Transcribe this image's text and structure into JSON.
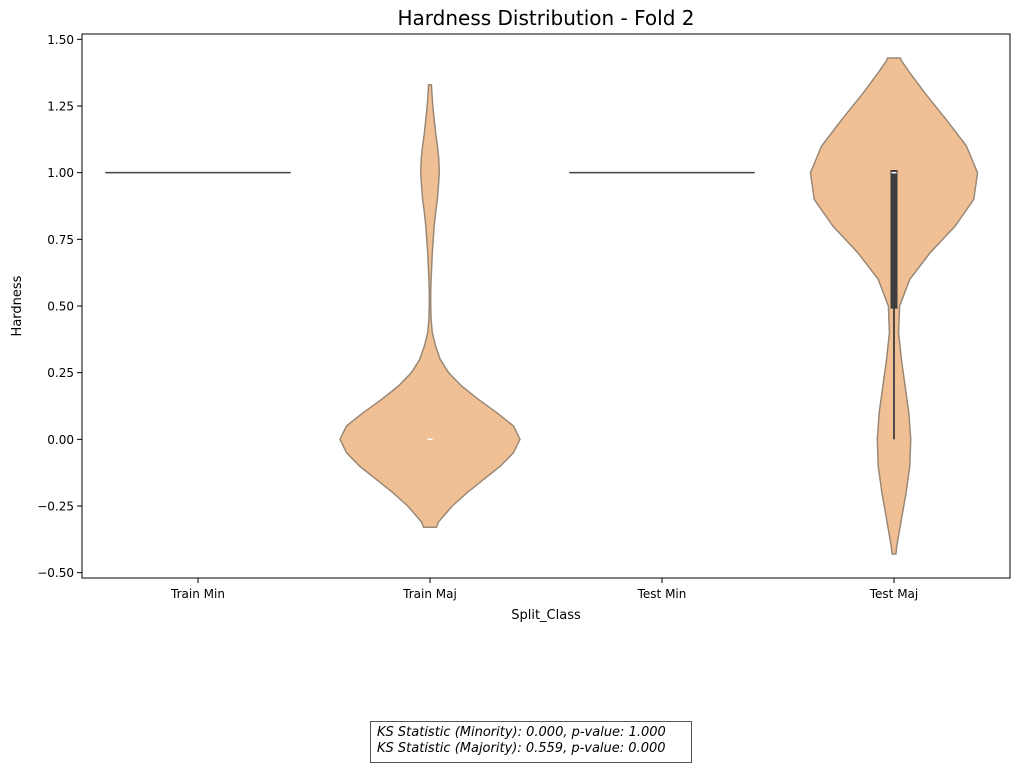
{
  "chart_data": {
    "type": "violin",
    "title": "Hardness Distribution - Fold 2",
    "xlabel": "Split_Class",
    "ylabel": "Hardness",
    "ylim": [
      -0.52,
      1.52
    ],
    "yticks": [
      -0.5,
      -0.25,
      0.0,
      0.25,
      0.5,
      0.75,
      1.0,
      1.25,
      1.5
    ],
    "ytick_labels": [
      "−0.50",
      "−0.25",
      "0.00",
      "0.25",
      "0.50",
      "0.75",
      "1.00",
      "1.25",
      "1.50"
    ],
    "categories": [
      "Train Min",
      "Train Maj",
      "Test Min",
      "Test Maj"
    ],
    "fill_color": "#f0c094",
    "edge_color": "#998877",
    "violins": [
      {
        "category": "Train Min",
        "degenerate_value": 1.0
      },
      {
        "category": "Train Maj",
        "median": 0.0,
        "q1": 0.0,
        "q3": 0.0,
        "profile": [
          [
            -0.33,
            0.07
          ],
          [
            -0.31,
            0.09
          ],
          [
            -0.25,
            0.24
          ],
          [
            -0.2,
            0.4
          ],
          [
            -0.15,
            0.58
          ],
          [
            -0.1,
            0.76
          ],
          [
            -0.05,
            0.9
          ],
          [
            0.0,
            0.97
          ],
          [
            0.05,
            0.9
          ],
          [
            0.1,
            0.72
          ],
          [
            0.15,
            0.52
          ],
          [
            0.2,
            0.34
          ],
          [
            0.25,
            0.2
          ],
          [
            0.3,
            0.11
          ],
          [
            0.35,
            0.06
          ],
          [
            0.4,
            0.025
          ],
          [
            0.45,
            0.012
          ],
          [
            0.5,
            0.008
          ],
          [
            0.55,
            0.008
          ],
          [
            0.6,
            0.012
          ],
          [
            0.7,
            0.025
          ],
          [
            0.8,
            0.045
          ],
          [
            0.85,
            0.06
          ],
          [
            0.9,
            0.08
          ],
          [
            0.95,
            0.09
          ],
          [
            1.0,
            0.1
          ],
          [
            1.05,
            0.095
          ],
          [
            1.1,
            0.08
          ],
          [
            1.15,
            0.06
          ],
          [
            1.2,
            0.045
          ],
          [
            1.25,
            0.03
          ],
          [
            1.3,
            0.02
          ],
          [
            1.33,
            0.015
          ]
        ]
      },
      {
        "category": "Test Min",
        "degenerate_value": 1.0
      },
      {
        "category": "Test Maj",
        "median": 1.0,
        "q1": 0.49,
        "q3": 1.01,
        "whisker_low": 0.0,
        "whisker_high": 1.01,
        "profile": [
          [
            -0.43,
            0.02
          ],
          [
            -0.4,
            0.03
          ],
          [
            -0.3,
            0.08
          ],
          [
            -0.2,
            0.13
          ],
          [
            -0.1,
            0.17
          ],
          [
            0.0,
            0.18
          ],
          [
            0.1,
            0.16
          ],
          [
            0.2,
            0.12
          ],
          [
            0.3,
            0.08
          ],
          [
            0.4,
            0.05
          ],
          [
            0.5,
            0.06
          ],
          [
            0.6,
            0.17
          ],
          [
            0.7,
            0.39
          ],
          [
            0.8,
            0.66
          ],
          [
            0.9,
            0.86
          ],
          [
            1.0,
            0.9
          ],
          [
            1.1,
            0.78
          ],
          [
            1.2,
            0.56
          ],
          [
            1.3,
            0.33
          ],
          [
            1.38,
            0.16
          ],
          [
            1.42,
            0.08
          ],
          [
            1.43,
            0.07
          ]
        ]
      }
    ],
    "annotation_lines": [
      "KS Statistic (Minority): 0.000, p-value: 1.000",
      "KS Statistic (Majority): 0.559, p-value: 0.000"
    ]
  }
}
